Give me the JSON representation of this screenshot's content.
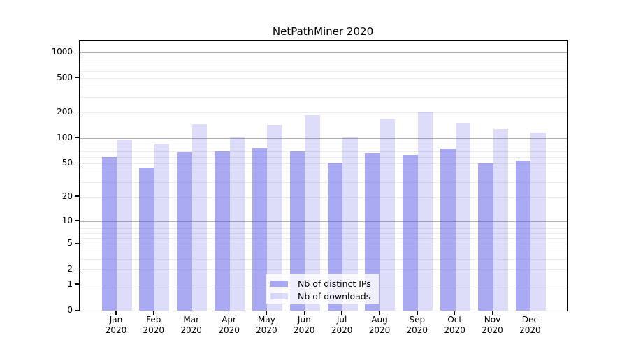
{
  "title": "NetPathMiner 2020",
  "chart_data": {
    "type": "bar",
    "title": "NetPathMiner 2020",
    "yscale": "log1p",
    "ylim": [
      0,
      1300
    ],
    "yticks": [
      0,
      1,
      2,
      5,
      10,
      20,
      50,
      100,
      200,
      500,
      1000
    ],
    "grid": {
      "major_at": [
        1,
        10,
        100,
        1000
      ],
      "minor_decades": [
        1,
        10,
        100
      ],
      "orientation": "horizontal"
    },
    "categories": [
      "Jan 2020",
      "Feb 2020",
      "Mar 2020",
      "Apr 2020",
      "May 2020",
      "Jun 2020",
      "Jul 2020",
      "Aug 2020",
      "Sep 2020",
      "Oct 2020",
      "Nov 2020",
      "Dec 2020"
    ],
    "series": [
      {
        "name": "Nb of distinct IPs",
        "color": "rgba(85,85,230,0.5)",
        "values": [
          60,
          45,
          68,
          70,
          77,
          70,
          51,
          67,
          63,
          75,
          50,
          54
        ]
      },
      {
        "name": "Nb of downloads",
        "color": "rgba(85,85,230,0.2)",
        "values": [
          97,
          86,
          146,
          104,
          143,
          184,
          103,
          170,
          202,
          152,
          127,
          117
        ]
      }
    ],
    "legend_position": "lower center",
    "colors": {
      "grid_major": "#b0b0b0",
      "grid_minor": "#ededed",
      "axis": "#000000",
      "bar_base": "#5555e6"
    }
  }
}
